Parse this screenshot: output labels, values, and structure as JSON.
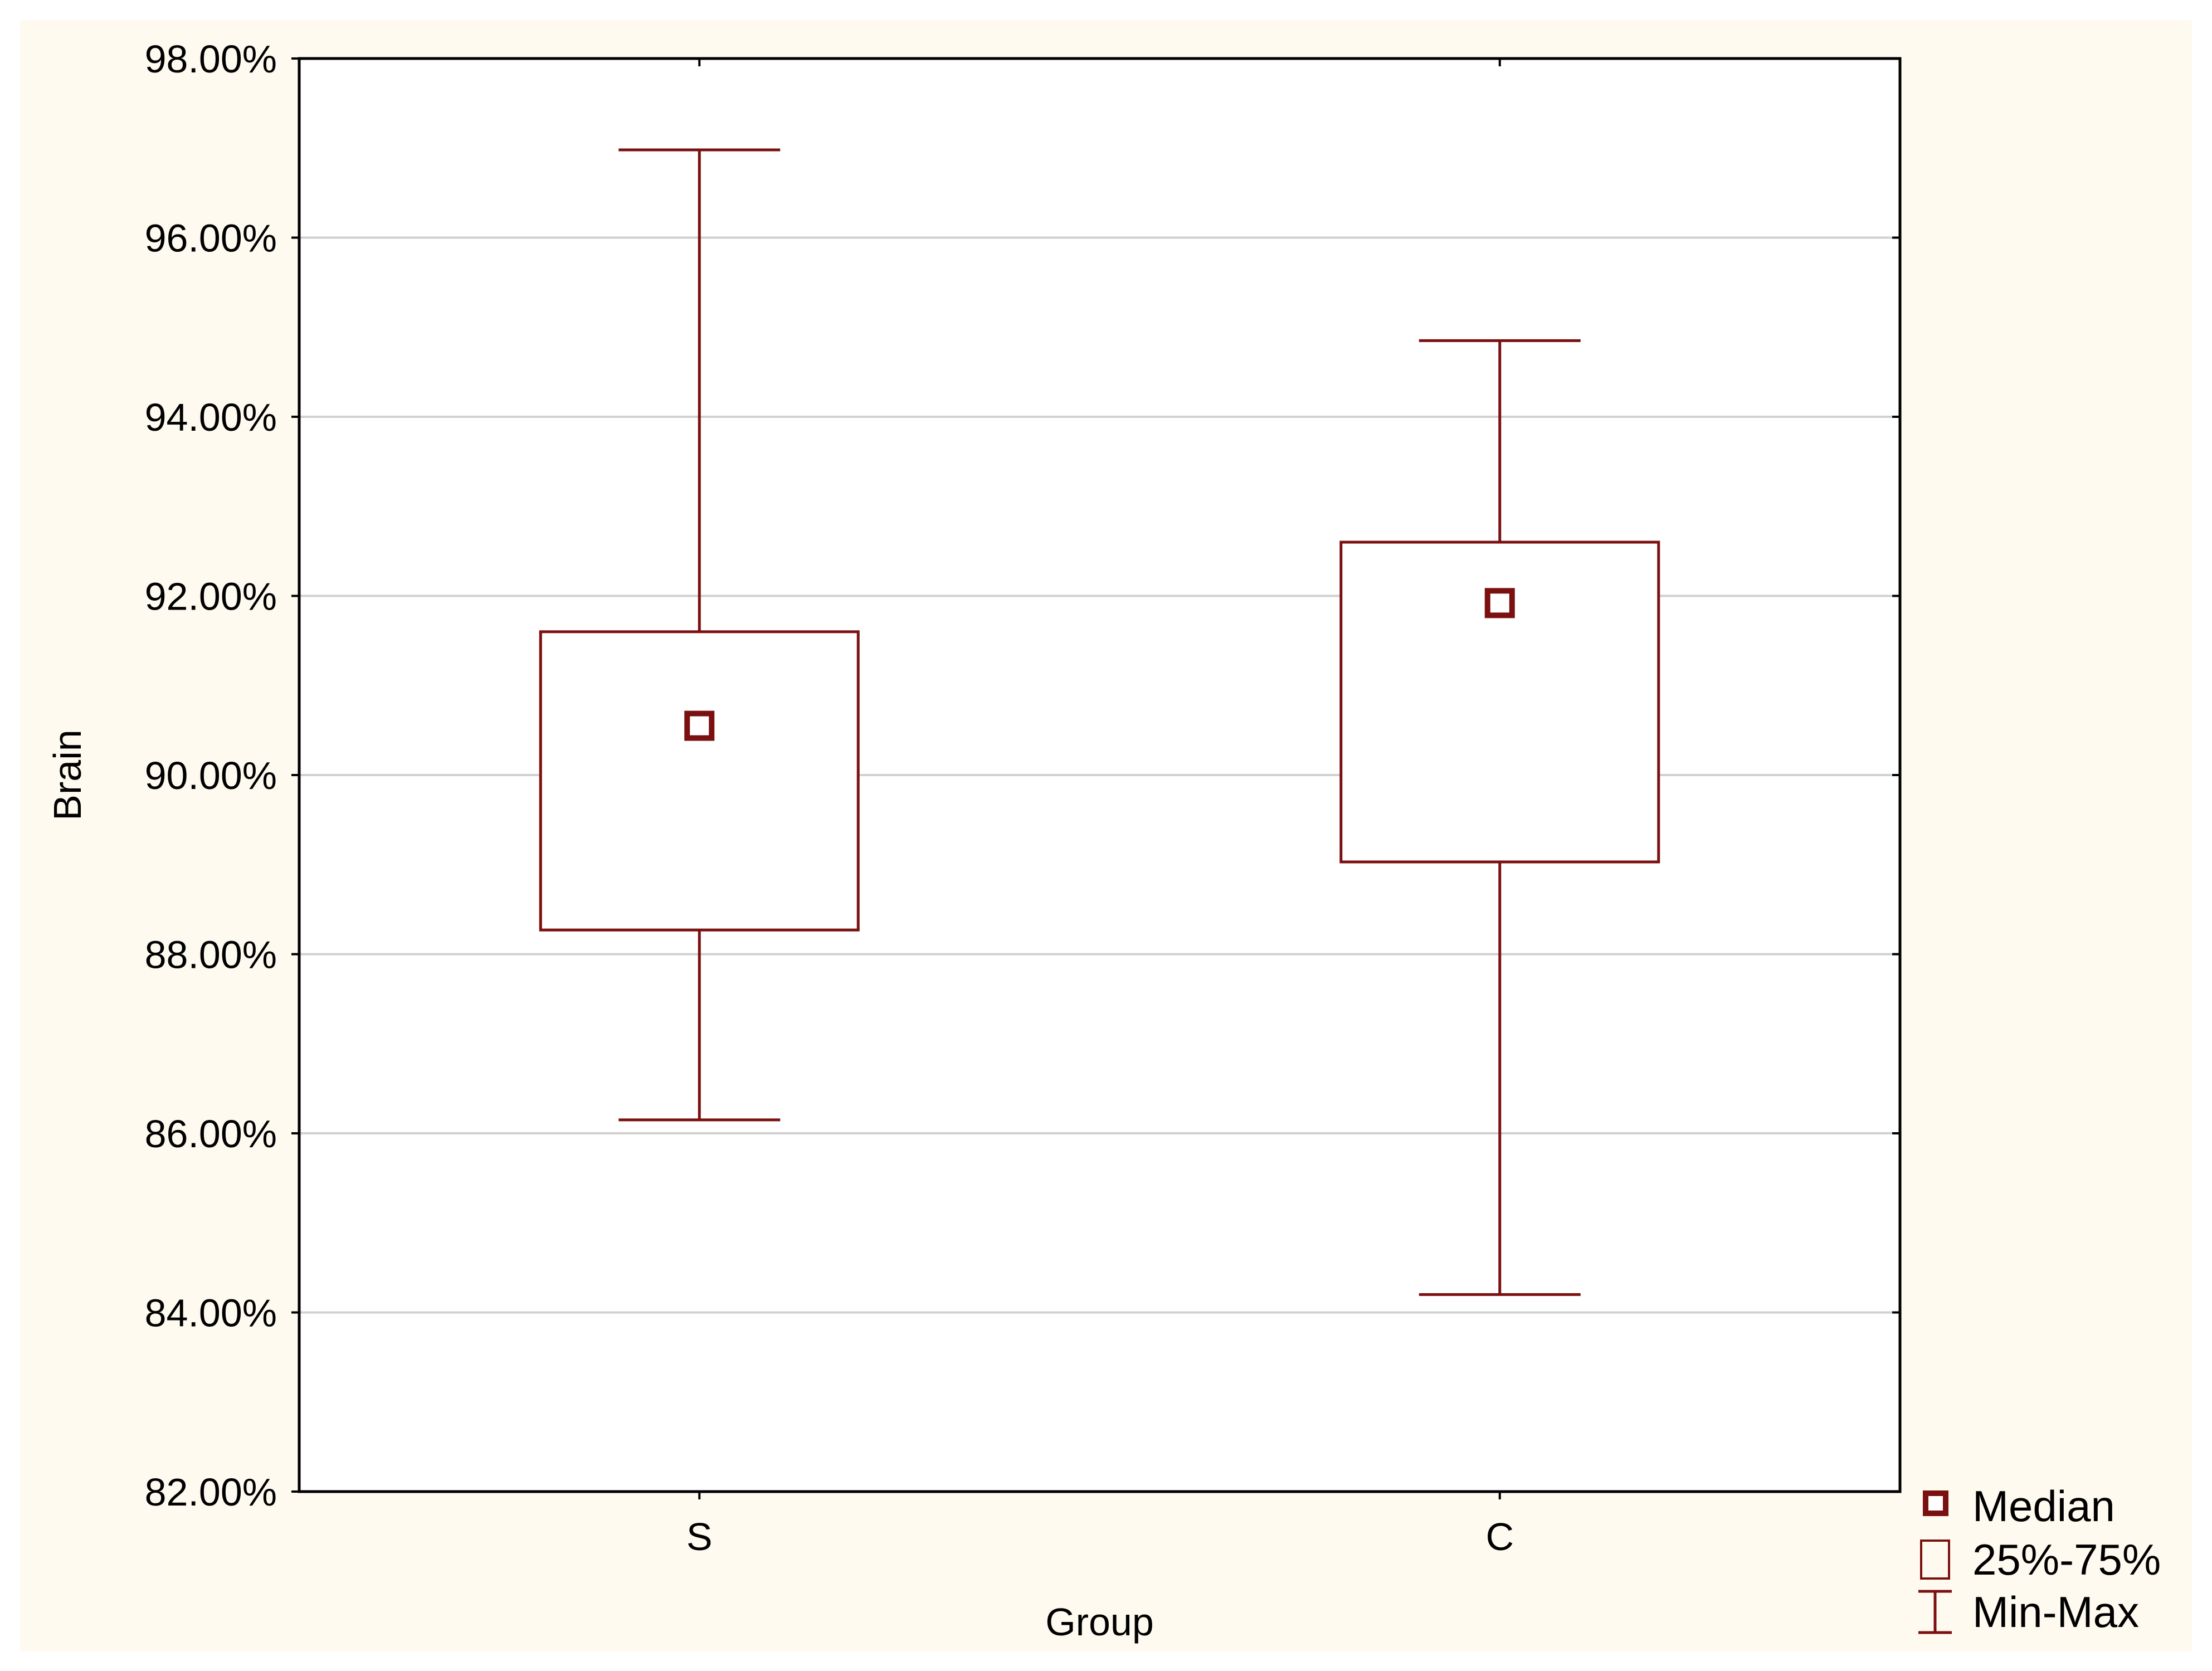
{
  "chart_data": {
    "type": "boxplot",
    "xlabel": "Group",
    "ylabel": "Brain",
    "ylim": [
      82,
      98
    ],
    "ytick_step": 2,
    "ytick_format": "percent_2dp",
    "grid": true,
    "legend_position": "bottom-right-outside",
    "categories": [
      "S",
      "C"
    ],
    "boxes": [
      {
        "category": "S",
        "min": 86.15,
        "q1": 88.27,
        "median": 90.55,
        "q3": 91.6,
        "max": 96.98
      },
      {
        "category": "C",
        "min": 84.2,
        "q1": 89.03,
        "median": 91.92,
        "q3": 92.6,
        "max": 94.85
      }
    ],
    "legend": [
      {
        "key": "median",
        "label": "Median"
      },
      {
        "key": "box",
        "label": "25%-75%"
      },
      {
        "key": "whisker",
        "label": "Min-Max"
      }
    ],
    "colors": {
      "series": "#7b1010",
      "grid": "#d0d0d0",
      "axis": "#000000",
      "background": "#fefaf0",
      "plot_background": "#ffffff"
    }
  }
}
